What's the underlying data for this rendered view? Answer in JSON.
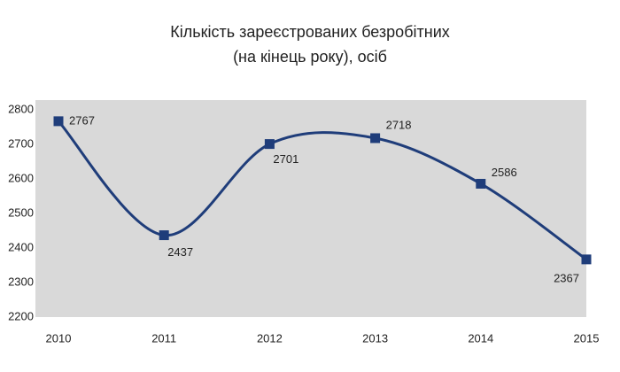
{
  "chart_data": {
    "type": "line",
    "title": "Кількість зареєстрованих безробітних",
    "subtitle": "(на кінець року), осіб",
    "x": [
      2010,
      2011,
      2012,
      2013,
      2014,
      2015
    ],
    "series": [
      {
        "name": "Кількість зареєстрованих безробітних",
        "color": "#1f3d7a",
        "values": [
          2767,
          2437,
          2701,
          2718,
          2586,
          2367
        ]
      }
    ],
    "xlim": [
      2010,
      2015
    ],
    "xticks": [
      2010,
      2011,
      2012,
      2013,
      2014,
      2015
    ],
    "ylim": [
      2200,
      2800
    ],
    "yticks": [
      2200,
      2300,
      2400,
      2500,
      2600,
      2700,
      2800
    ],
    "smooth": true,
    "plot_background": "#d9d9d9"
  }
}
